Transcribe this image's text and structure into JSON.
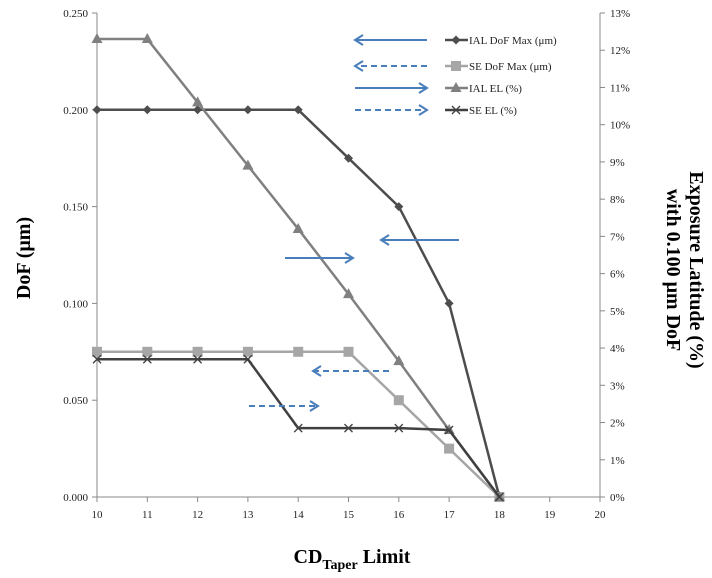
{
  "chart_data": {
    "type": "line",
    "title": "",
    "xlabel_main": "CD",
    "xlabel_sub": "Taper",
    "xlabel_suffix": " Limit",
    "ylabel": "DoF (μm)",
    "y2label_line1": "Exposure Latitude (%)",
    "y2label_line2": "with 0.100 μm DoF",
    "x_ticks": [
      "10",
      "11",
      "12",
      "13",
      "14",
      "15",
      "16",
      "17",
      "18",
      "19",
      "20"
    ],
    "y_ticks": [
      "0.000",
      "0.050",
      "0.100",
      "0.150",
      "0.200",
      "0.250"
    ],
    "y2_ticks": [
      "0%",
      "1%",
      "2%",
      "3%",
      "4%",
      "5%",
      "6%",
      "7%",
      "8%",
      "9%",
      "10%",
      "11%",
      "12%",
      "13%"
    ],
    "xlim": [
      10,
      20
    ],
    "ylim": [
      0,
      0.25
    ],
    "y2lim": [
      0,
      13
    ],
    "grid": false,
    "legend_position": "top-right",
    "series": [
      {
        "name": "IAL DoF Max (μm)",
        "axis": "left",
        "marker": "diamond",
        "color": "#4d4d4d",
        "x": [
          10,
          11,
          12,
          13,
          14,
          15,
          16,
          17,
          18
        ],
        "y": [
          0.2,
          0.2,
          0.2,
          0.2,
          0.2,
          0.175,
          0.15,
          0.1,
          0.0
        ]
      },
      {
        "name": "SE DoF Max (μm)",
        "axis": "left",
        "marker": "square",
        "color": "#a6a6a6",
        "x": [
          10,
          11,
          12,
          13,
          14,
          15,
          16,
          17,
          18
        ],
        "y": [
          0.075,
          0.075,
          0.075,
          0.075,
          0.075,
          0.075,
          0.05,
          0.025,
          0.0
        ]
      },
      {
        "name": "IAL EL (%)",
        "axis": "right",
        "marker": "triangle",
        "color": "#808080",
        "x": [
          10,
          11,
          12,
          13,
          14,
          15,
          16,
          17,
          18
        ],
        "y": [
          12.3,
          12.3,
          10.6,
          8.9,
          7.2,
          5.45,
          3.65,
          1.8,
          0
        ]
      },
      {
        "name": "SE EL (%)",
        "axis": "right",
        "marker": "x",
        "color": "#404040",
        "x": [
          10,
          11,
          12,
          13,
          14,
          15,
          16,
          17,
          18
        ],
        "y": [
          3.7,
          3.7,
          3.7,
          3.7,
          1.85,
          1.85,
          1.85,
          1.8,
          0
        ]
      }
    ],
    "arrow_color": "#4a7ebb"
  }
}
